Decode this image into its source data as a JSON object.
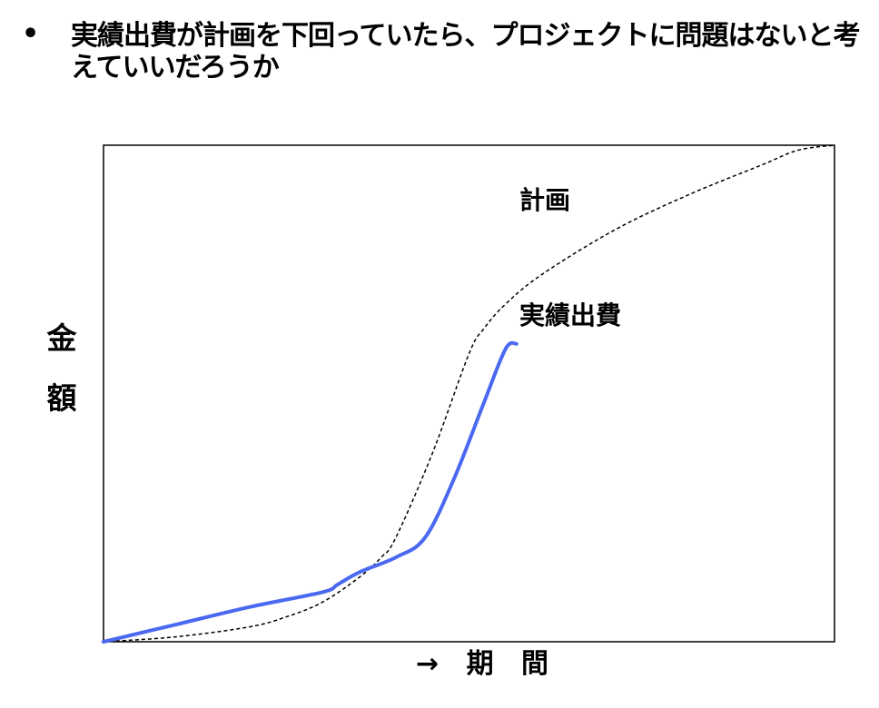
{
  "slide": {
    "bullet": "•",
    "title": "実績出費が計画を下回っていたら、プロジェクトに問題はないと考えていいだろうか"
  },
  "chart_data": {
    "type": "line",
    "title": "",
    "xlabel": "→ 期 間",
    "ylabel": "金額",
    "ylabel_chars": [
      "金",
      "額"
    ],
    "ticks_shown": false,
    "grid": false,
    "xlim": [
      0,
      100
    ],
    "ylim": [
      0,
      100
    ],
    "series": [
      {
        "name": "計画",
        "style": "dashed",
        "color": "#000000",
        "x": [
          0,
          10,
          20,
          25,
          30,
          35,
          38,
          40,
          45,
          50,
          52,
          55,
          60,
          70,
          80,
          90,
          95,
          100
        ],
        "y": [
          0,
          1,
          3,
          5,
          8,
          13,
          17,
          21,
          38,
          58,
          63,
          68,
          74,
          83,
          90,
          96,
          99,
          100
        ]
      },
      {
        "name": "実績出費",
        "style": "solid",
        "color": "#4a68f0",
        "x": [
          0,
          10,
          20,
          30,
          32,
          35,
          40,
          44,
          48,
          52,
          55,
          56.5
        ],
        "y": [
          0,
          3.5,
          7,
          10,
          11.5,
          14,
          17,
          21,
          33,
          48,
          59,
          60
        ]
      }
    ]
  }
}
